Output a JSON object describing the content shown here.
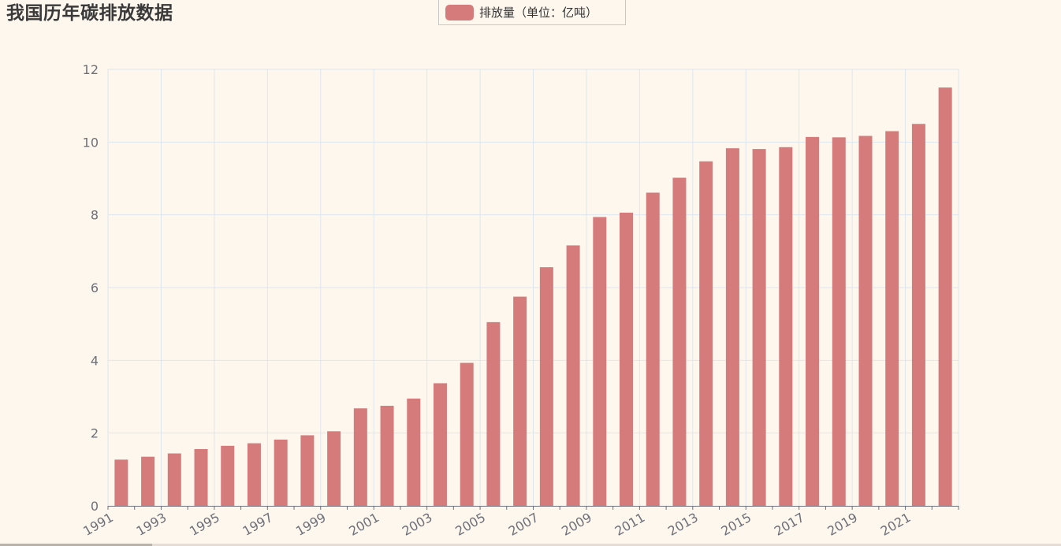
{
  "title": "我国历年碳排放数据",
  "legend": {
    "label": "排放量（单位：亿吨）"
  },
  "colors": {
    "bar": "#d67b7b",
    "grid": "#dde6ee",
    "axis": "#6e7079",
    "tick_label": "#6e7079"
  },
  "chart_data": {
    "type": "bar",
    "title": "我国历年碳排放数据",
    "xlabel": "",
    "ylabel": "",
    "ylim": [
      0,
      12
    ],
    "yticks": [
      0,
      2,
      4,
      6,
      8,
      10,
      12
    ],
    "grid": true,
    "legend_position": "top-center",
    "categories": [
      "1991",
      "1992",
      "1993",
      "1994",
      "1995",
      "1996",
      "1997",
      "1998",
      "1999",
      "2000",
      "2001",
      "2002",
      "2003",
      "2004",
      "2005",
      "2006",
      "2007",
      "2008",
      "2009",
      "2010",
      "2011",
      "2012",
      "2013",
      "2014",
      "2015",
      "2016",
      "2017",
      "2018",
      "2019",
      "2020",
      "2021",
      "2022"
    ],
    "xtick_labels": [
      "1991",
      "1993",
      "1995",
      "1997",
      "1999",
      "2001",
      "2003",
      "2005",
      "2007",
      "2009",
      "2011",
      "2013",
      "2015",
      "2017",
      "2019",
      "2021"
    ],
    "series": [
      {
        "name": "排放量（单位：亿吨）",
        "values": [
          1.27,
          1.35,
          1.44,
          1.56,
          1.65,
          1.72,
          1.82,
          1.94,
          2.05,
          2.68,
          2.75,
          2.95,
          3.37,
          3.93,
          5.05,
          5.75,
          6.56,
          7.16,
          7.94,
          8.06,
          8.61,
          9.02,
          9.47,
          9.83,
          9.81,
          9.86,
          10.14,
          10.13,
          10.17,
          10.3,
          10.5,
          11.5
        ]
      }
    ]
  }
}
